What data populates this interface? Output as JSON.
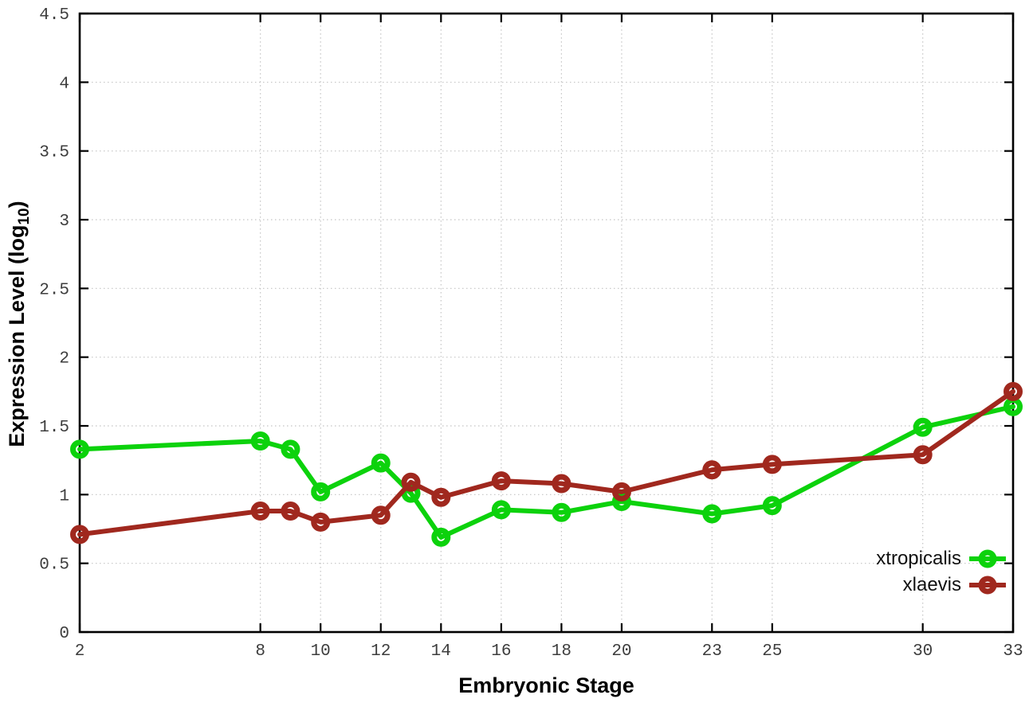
{
  "chart_data": {
    "type": "line",
    "title": "",
    "xlabel": "Embryonic Stage",
    "ylabel": {
      "text": "Expression Level (log",
      "sub": "10",
      "suffix": ")"
    },
    "x": [
      2,
      8,
      9,
      10,
      12,
      13,
      14,
      16,
      18,
      20,
      23,
      25,
      30,
      33
    ],
    "series": [
      {
        "name": "xtropicalis",
        "color": "#0cd20c",
        "values": [
          1.33,
          1.39,
          1.33,
          1.02,
          1.23,
          1.01,
          0.69,
          0.89,
          0.87,
          0.95,
          0.86,
          0.92,
          1.49,
          1.64
        ]
      },
      {
        "name": "xlaevis",
        "color": "#a0281e",
        "values": [
          0.71,
          0.88,
          0.88,
          0.8,
          0.85,
          1.09,
          0.98,
          1.1,
          1.08,
          1.02,
          1.18,
          1.22,
          1.29,
          1.75
        ]
      }
    ],
    "xticks": [
      2,
      8,
      10,
      12,
      14,
      16,
      18,
      20,
      23,
      25,
      30,
      33
    ],
    "xtick_labels": [
      "2",
      "8",
      "10",
      "12",
      "14",
      "16",
      "18",
      "20",
      "23",
      "25",
      "30",
      "33"
    ],
    "yticks": [
      0,
      0.5,
      1,
      1.5,
      2,
      2.5,
      3,
      3.5,
      4,
      4.5
    ],
    "ytick_labels": [
      "0",
      "0.5",
      "1",
      "1.5",
      "2",
      "2.5",
      "3",
      "3.5",
      "4",
      "4.5"
    ],
    "xlim": [
      2,
      33
    ],
    "ylim": [
      0,
      4.5
    ],
    "grid": true,
    "legend_position": "bottom-right",
    "colors": {
      "grid": "#c4c4c4",
      "border": "#000000",
      "tick_text": "#3d3d3d"
    }
  }
}
